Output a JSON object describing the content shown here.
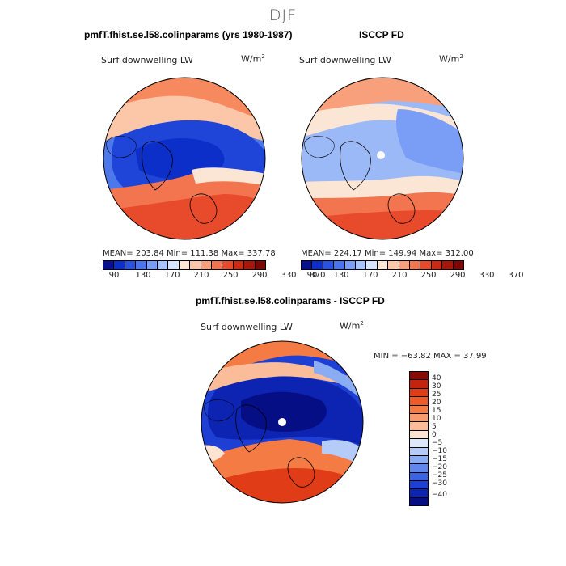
{
  "figure": {
    "season": "DJF",
    "panel_left": {
      "title": "pmfT.fhist.se.l58.colinparams (yrs 1980-1987)",
      "variable": "Surf downwelling LW",
      "units": "W/m",
      "units_sup": "2",
      "stats": "MEAN= 203.84  Min= 111.38  Max= 337.78"
    },
    "panel_right": {
      "title": "ISCCP FD",
      "variable": "Surf downwelling LW",
      "units": "W/m",
      "units_sup": "2",
      "stats": "MEAN= 224.17  Min= 149.94  Max= 312.00"
    },
    "panel_diff": {
      "title": "pmfT.fhist.se.l58.colinparams - ISCCP FD",
      "variable": "Surf downwelling LW",
      "units": "W/m",
      "units_sup": "2",
      "stats": "MIN = −63.82 MAX =  37.99"
    },
    "abs_colorbar": {
      "tick_labels": [
        "90",
        "130",
        "170",
        "210",
        "250",
        "290",
        "330",
        "370"
      ],
      "colors": [
        "#08108f",
        "#0d2fc9",
        "#2a52e0",
        "#4a74ee",
        "#7a9ef6",
        "#a9c3fb",
        "#d7e4fd",
        "#fbe6d6",
        "#fcc7a8",
        "#f8a07b",
        "#f27550",
        "#e84a2c",
        "#cc2a15",
        "#a8150b",
        "#7d0606"
      ]
    },
    "diff_colorbar": {
      "tick_labels": [
        "40",
        "30",
        "25",
        "20",
        "15",
        "10",
        "5",
        "0",
        "−5",
        "−10",
        "−15",
        "−20",
        "−25",
        "−30",
        "−40"
      ],
      "colors": [
        "#8a0b04",
        "#c4240e",
        "#e03c17",
        "#ef5a26",
        "#f57b45",
        "#f99c6c",
        "#fbbd99",
        "#fde3d2",
        "#dde8fb",
        "#b5ccf8",
        "#8aacf3",
        "#5f87ec",
        "#3a63e2",
        "#1e3fd4",
        "#0d24b3",
        "#050e84"
      ]
    },
    "map_palette": {
      "ocean_dark": "#0a1aa0",
      "ocean_blue": "#1f45d8",
      "mid_blue": "#4d78ec",
      "light_blue": "#9bb9f7",
      "pale": "#fbe2d2",
      "orange": "#f7895e",
      "red": "#e2431f",
      "dark_red": "#c12a12"
    }
  }
}
